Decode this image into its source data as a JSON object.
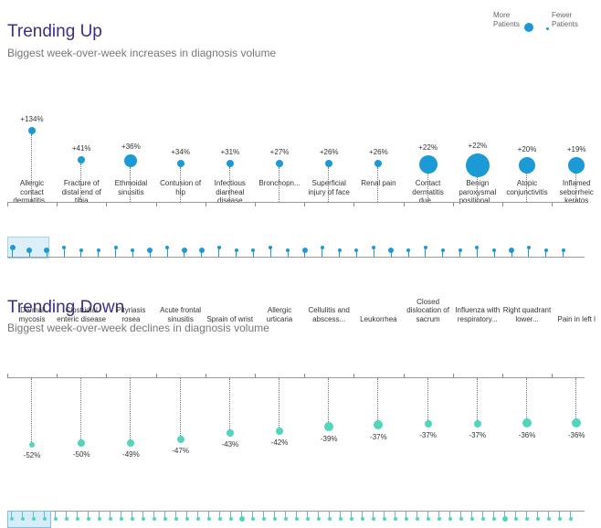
{
  "colors": {
    "up": "#1c9ad6",
    "down": "#4fd6bd",
    "title": "#3b2f86"
  },
  "legend": {
    "more": "More Patients",
    "fewer": "Fewer Patients"
  },
  "up": {
    "title": "Trending Up",
    "subtitle": "Biggest week-over-week increases in diagnosis volume",
    "items": [
      {
        "label": "Allergic contact dermatitis...",
        "pct": "+134%",
        "size": 4
      },
      {
        "label": "Fracture of distal end of tibia",
        "pct": "+41%",
        "size": 4
      },
      {
        "label": "Ethmoidal sinusitis",
        "pct": "+36%",
        "size": 7
      },
      {
        "label": "Contusion of hip",
        "pct": "+34%",
        "size": 4
      },
      {
        "label": "Infectious diarrheal disease",
        "pct": "+31%",
        "size": 4
      },
      {
        "label": "Bronchopn...",
        "pct": "+27%",
        "size": 4
      },
      {
        "label": "Superficial injury of face",
        "pct": "+26%",
        "size": 4
      },
      {
        "label": "Renal pain",
        "pct": "+26%",
        "size": 4
      },
      {
        "label": "Contact dermatitis due...",
        "pct": "+22%",
        "size": 10
      },
      {
        "label": "Benign paroxysmal positional...",
        "pct": "+22%",
        "size": 13
      },
      {
        "label": "Atopic conjunctivitis",
        "pct": "+20%",
        "size": 9
      },
      {
        "label": "Inflamed seborrheic keratos",
        "pct": "+19%",
        "size": 9
      }
    ],
    "overview": [
      2,
      2,
      2,
      1,
      1,
      1,
      1,
      1,
      2,
      1,
      2,
      2,
      1,
      1,
      1,
      1,
      1,
      2,
      1,
      1,
      1,
      1,
      2,
      1,
      1,
      1,
      1,
      1,
      1,
      2,
      1,
      1,
      1
    ]
  },
  "down": {
    "title": "Trending Down",
    "subtitle": "Biggest week-over-week declines in diagnosis volume",
    "items": [
      {
        "label": "Dermal mycosis",
        "pct": "-52%",
        "size": 3
      },
      {
        "label": "Clostridial enteric disease",
        "pct": "-50%",
        "size": 4
      },
      {
        "label": "Pityriasis rosea",
        "pct": "-49%",
        "size": 4
      },
      {
        "label": "Acute frontal sinusitis",
        "pct": "-47%",
        "size": 4
      },
      {
        "label": "Sprain of wrist",
        "pct": "-43%",
        "size": 4
      },
      {
        "label": "Allergic urticaria",
        "pct": "-42%",
        "size": 4
      },
      {
        "label": "Cellulitis and abscess...",
        "pct": "-39%",
        "size": 5
      },
      {
        "label": "Leukorrhea",
        "pct": "-37%",
        "size": 5
      },
      {
        "label": "Closed dislocation of sacrum",
        "pct": "-37%",
        "size": 4
      },
      {
        "label": "Influenza with respiratory...",
        "pct": "-37%",
        "size": 4
      },
      {
        "label": "Right quadrant lower...",
        "pct": "-36%",
        "size": 5
      },
      {
        "label": "Pain in left l",
        "pct": "-36%",
        "size": 5
      }
    ],
    "overview": [
      1,
      1,
      1,
      1,
      1,
      1,
      1,
      1,
      1,
      1,
      1,
      1,
      1,
      1,
      1,
      1,
      1,
      1,
      1,
      1,
      1,
      2,
      1,
      1,
      1,
      1,
      1,
      1,
      1,
      1,
      1,
      1,
      1,
      1,
      1,
      1,
      1,
      1,
      1,
      1,
      1,
      1,
      1,
      1,
      1,
      2,
      1,
      1,
      1,
      1,
      1,
      1
    ]
  }
}
